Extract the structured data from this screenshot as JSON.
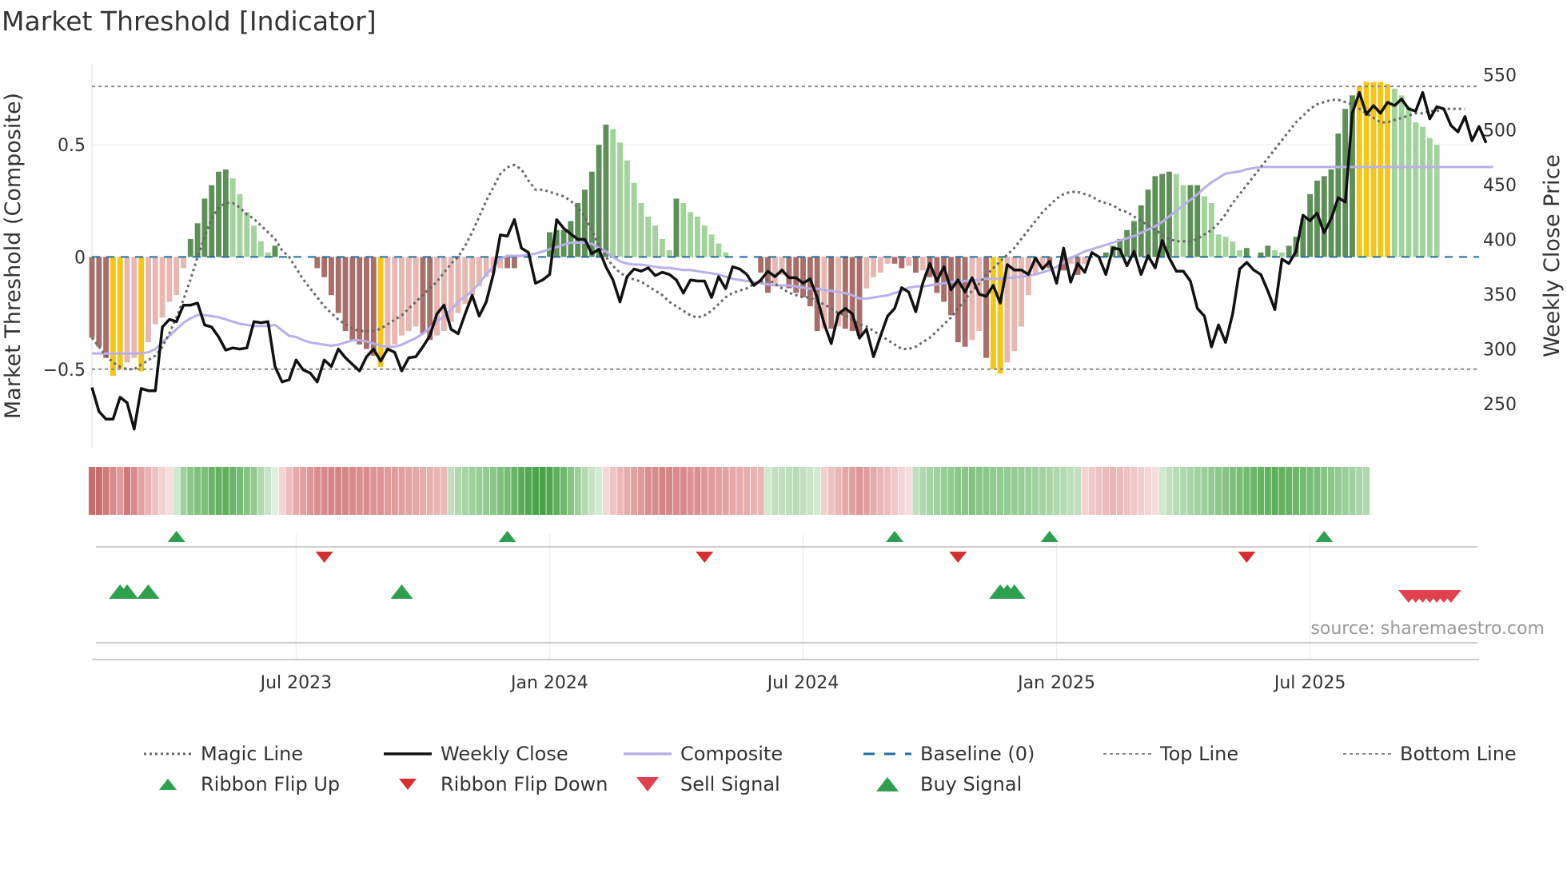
{
  "chart_data": {
    "type": "bar",
    "title": "Market Threshold [Indicator]",
    "source": "source: sharemaestro.com",
    "ylabel_left": "Market Threshold (Composite)",
    "ylabel_right": "Weekly Close Price",
    "ylim_left": [
      -0.85,
      0.86
    ],
    "ylim_right": [
      210,
      560
    ],
    "left_ticks": [
      {
        "value": 0.5,
        "label": "0.5"
      },
      {
        "value": 0,
        "label": "0"
      },
      {
        "value": -0.5,
        "label": "−0.5"
      }
    ],
    "right_ticks": [
      {
        "value": 550,
        "label": "550"
      },
      {
        "value": 500,
        "label": "500"
      },
      {
        "value": 450,
        "label": "450"
      },
      {
        "value": 400,
        "label": "400"
      },
      {
        "value": 350,
        "label": "350"
      },
      {
        "value": 300,
        "label": "300"
      },
      {
        "value": 250,
        "label": "250"
      }
    ],
    "x_ticks": [
      {
        "week": 29,
        "label": "Jul 2023"
      },
      {
        "week": 65,
        "label": "Jan 2024"
      },
      {
        "week": 101,
        "label": "Jul 2024"
      },
      {
        "week": 137,
        "label": "Jan 2025"
      },
      {
        "week": 173,
        "label": "Jul 2025"
      }
    ],
    "weeks": 198,
    "top_line": 0.76,
    "bottom_line": -0.5,
    "histogram": [
      -0.36,
      -0.4,
      -0.45,
      -0.53,
      -0.5,
      -0.47,
      -0.45,
      -0.51,
      -0.38,
      -0.3,
      -0.27,
      -0.2,
      -0.17,
      -0.05,
      0.08,
      0.15,
      0.26,
      0.32,
      0.38,
      0.39,
      0.35,
      0.28,
      0.2,
      0.14,
      0.07,
      0.02,
      0.05,
      0,
      0,
      0,
      0,
      0,
      -0.05,
      -0.09,
      -0.17,
      -0.25,
      -0.33,
      -0.37,
      -0.39,
      -0.41,
      -0.44,
      -0.49,
      -0.42,
      -0.39,
      -0.35,
      -0.33,
      -0.31,
      -0.34,
      -0.37,
      -0.35,
      -0.33,
      -0.29,
      -0.25,
      -0.21,
      -0.17,
      -0.13,
      -0.09,
      -0.07,
      -0.05,
      -0.05,
      -0.05,
      0,
      0,
      0,
      0,
      0.11,
      0.12,
      0.12,
      0.16,
      0.24,
      0.3,
      0.38,
      0.5,
      0.59,
      0.57,
      0.51,
      0.43,
      0.33,
      0.24,
      0.18,
      0.14,
      0.08,
      0.03,
      0.26,
      0.24,
      0.2,
      0.18,
      0.14,
      0.1,
      0.06,
      0.02,
      0,
      0,
      0,
      0,
      -0.07,
      -0.16,
      -0.12,
      -0.08,
      -0.14,
      -0.16,
      -0.18,
      -0.22,
      -0.33,
      -0.32,
      -0.32,
      -0.31,
      -0.32,
      -0.33,
      -0.35,
      -0.14,
      -0.09,
      -0.07,
      -0.03,
      -0.03,
      -0.05,
      -0.04,
      -0.07,
      -0.06,
      -0.09,
      -0.16,
      -0.2,
      -0.26,
      -0.38,
      -0.4,
      -0.37,
      -0.33,
      -0.45,
      -0.5,
      -0.52,
      -0.47,
      -0.42,
      -0.31,
      -0.17,
      -0.08,
      -0.05,
      -0.05,
      0,
      -0.06,
      -0.03,
      -0.08,
      -0.03,
      0,
      0,
      0.02,
      0.05,
      0.08,
      0.12,
      0.16,
      0.23,
      0.3,
      0.36,
      0.37,
      0.38,
      0.37,
      0.32,
      0.32,
      0.32,
      0.27,
      0.24,
      0.1,
      0.09,
      0.07,
      0.03,
      0.04,
      0,
      0.02,
      0.05,
      0.03,
      0.02,
      0.05,
      0.09,
      0.17,
      0.28,
      0.34,
      0.36,
      0.39,
      0.55,
      0.66,
      0.72,
      0.76,
      0.78,
      0.78,
      0.78,
      0.77,
      0.75,
      0.72,
      0.67,
      0.6,
      0.58,
      0.53,
      0.5
    ],
    "histogram_colors": {
      "dark_green": "#5e8f59",
      "light_green": "#a3d39c",
      "dark_red": "#a86e6a",
      "light_red": "#e8b7b1",
      "extreme": "#f5c518"
    },
    "ribbon_colors": [
      "#c96e6e",
      "#c96e6e",
      "#d07a7a",
      "#d98b8b",
      "#e09a9a",
      "#cf7a7a",
      "#d98b8b",
      "#e3a3a3",
      "#e9b4b4",
      "#eec2c2",
      "#f3d2d2",
      "#f7dede",
      "#cfe8ce",
      "#9fd19d",
      "#8bc789",
      "#82c280",
      "#7dbf7b",
      "#69b467",
      "#62b060",
      "#5eae5c",
      "#6ab568",
      "#78bd76",
      "#85c383",
      "#94ca92",
      "#b1d9af",
      "#c8e4c6",
      "#dff0de",
      "#f4d4d4",
      "#eebebe",
      "#e8a9a9",
      "#e3a0a0",
      "#de9595",
      "#da8e8e",
      "#d98b8b",
      "#d48585",
      "#d38383",
      "#d58686",
      "#d78a8a",
      "#da8f8f",
      "#d98c8c",
      "#dd9494",
      "#dc9393",
      "#df9a9a",
      "#e09c9c",
      "#e29f9f",
      "#e3a3a3",
      "#e4a6a6",
      "#e6abab",
      "#e8afaf",
      "#eab4b4",
      "#ebb7b7",
      "#c2e0c0",
      "#b0d8ae",
      "#a7d4a5",
      "#9fd09d",
      "#98cd96",
      "#94cb92",
      "#8cc78a",
      "#81c17f",
      "#78bd76",
      "#69b467",
      "#5bac59",
      "#52a850",
      "#49a447",
      "#48a346",
      "#4fa64d",
      "#5fae5d",
      "#70b86e",
      "#86c384",
      "#9dcf9b",
      "#b2d9b0",
      "#c8e4c6",
      "#d4ead3",
      "#f4d8d8",
      "#efc4c4",
      "#ebb6b6",
      "#e7abab",
      "#e2a0a0",
      "#df9999",
      "#da8f8f",
      "#d88b8b",
      "#d48484",
      "#d58686",
      "#d98b8b",
      "#d88a8a",
      "#dd9393",
      "#da8f8f",
      "#de9797",
      "#e09a9a",
      "#e29f9f",
      "#e3a3a3",
      "#e5a7a7",
      "#e6aaaa",
      "#e7adad",
      "#e9b1b1",
      "#eab4b4",
      "#cfe8ce",
      "#c2e0c0",
      "#c2e0c0",
      "#bcdfba",
      "#b7dcb5",
      "#c0e0be",
      "#c8e4c6",
      "#d2e9d1",
      "#f2d0d0",
      "#eec2c2",
      "#e9b4b4",
      "#e5a7a7",
      "#e1a0a0",
      "#dd9595",
      "#e0a0a0",
      "#e5aaaa",
      "#e9b4b4",
      "#edbdbd",
      "#f0c8c8",
      "#f4d4d4",
      "#f7dede",
      "#c2e0c0",
      "#b0d8ae",
      "#a7d4a5",
      "#9fd09d",
      "#98cd96",
      "#92ca90",
      "#8cc78a",
      "#88c586",
      "#84c382",
      "#88c586",
      "#8cc78a",
      "#90c98e",
      "#92ca90",
      "#94cb92",
      "#96cc94",
      "#98cd96",
      "#9bce99",
      "#9fd09d",
      "#a4d2a2",
      "#a9d4a7",
      "#aed7ac",
      "#b4dab2",
      "#bcdfba",
      "#c2e0c0",
      "#f3d2d2",
      "#f0c8c8",
      "#eec2c2",
      "#ebbaba",
      "#e9b4b4",
      "#ebbaba",
      "#eec2c2",
      "#f0c8c8",
      "#f2cece",
      "#f4d4d4",
      "#f7dede",
      "#cfe8ce",
      "#c2e0c0",
      "#b7dcb5",
      "#b0d8ae",
      "#a9d4a7",
      "#a2d1a0",
      "#9bce99",
      "#94cb92",
      "#8dc78b",
      "#86c384",
      "#7fbf7d",
      "#78bd76",
      "#72ba70",
      "#6cb66a",
      "#66b364",
      "#62b060",
      "#5eae5c",
      "#62b060",
      "#66b364",
      "#6cb66a",
      "#72ba70",
      "#78bd76",
      "#7fbf7d",
      "#86c384",
      "#8dc78b",
      "#94cb92",
      "#9bce99",
      "#a2d1a0",
      "#a9d4a7",
      "#b0d8ae"
    ],
    "weekly_close": [
      265,
      243,
      236,
      236,
      256,
      251,
      227,
      264,
      262,
      262,
      320,
      327,
      325,
      340,
      340,
      342,
      322,
      320,
      311,
      299,
      301,
      300,
      301,
      325,
      324,
      325,
      284,
      270,
      272,
      290,
      281,
      278,
      270,
      290,
      284,
      300,
      292,
      286,
      280,
      293,
      300,
      289,
      300,
      297,
      280,
      292,
      293,
      302,
      312,
      332,
      340,
      318,
      314,
      332,
      349,
      330,
      343,
      368,
      404,
      403,
      418,
      392,
      388,
      360,
      363,
      368,
      418,
      410,
      405,
      400,
      400,
      387,
      391,
      375,
      363,
      343,
      366,
      373,
      371,
      374,
      367,
      370,
      368,
      363,
      351,
      363,
      362,
      362,
      347,
      366,
      355,
      375,
      373,
      368,
      358,
      363,
      371,
      366,
      372,
      365,
      365,
      360,
      364,
      347,
      323,
      305,
      332,
      337,
      332,
      310,
      318,
      293,
      312,
      330,
      337,
      356,
      352,
      334,
      360,
      378,
      362,
      375,
      354,
      363,
      352,
      365,
      350,
      348,
      358,
      342,
      377,
      372,
      372,
      368,
      383,
      373,
      380,
      360,
      392,
      361,
      378,
      370,
      388,
      384,
      368,
      392,
      391,
      376,
      389,
      368,
      385,
      374,
      399,
      383,
      371,
      371,
      362,
      337,
      330,
      302,
      322,
      306,
      332,
      373,
      379,
      372,
      368,
      353,
      336,
      382,
      378,
      389,
      422,
      417,
      424,
      406,
      419,
      438,
      434,
      515,
      534,
      514,
      522,
      515,
      525,
      522,
      528,
      519,
      517,
      534,
      510,
      521,
      519,
      504,
      498,
      512,
      490,
      503,
      488
    ],
    "composite_right_axis": [
      296,
      296,
      296,
      296,
      296,
      296,
      296,
      296,
      297,
      300,
      306,
      312,
      318,
      324,
      328,
      331,
      331,
      330,
      329,
      327,
      325,
      323,
      322,
      321,
      321,
      321,
      322,
      317,
      312,
      311,
      308,
      306,
      305,
      304,
      303,
      304,
      306,
      308,
      308,
      307,
      305,
      303,
      302,
      302,
      304,
      307,
      310,
      314,
      319,
      325,
      330,
      336,
      343,
      348,
      353,
      360,
      368,
      375,
      382,
      385,
      385,
      385,
      386,
      387,
      389,
      391,
      393,
      395,
      397,
      397,
      397,
      396,
      392,
      389,
      384,
      380,
      378,
      377,
      377,
      376,
      375,
      374,
      374,
      373,
      372,
      372,
      371,
      370,
      369,
      368,
      366,
      364,
      363,
      362,
      361,
      360,
      359,
      358,
      358,
      358,
      357,
      356,
      355,
      355,
      354,
      353,
      352,
      351,
      349,
      346,
      346,
      347,
      348,
      349,
      351,
      353,
      356,
      357,
      357,
      358,
      359,
      360,
      361,
      362,
      362,
      363,
      363,
      364,
      364,
      364,
      365,
      365,
      366,
      367,
      368,
      370,
      372,
      375,
      379,
      383,
      386,
      389,
      391,
      393,
      395,
      397,
      399,
      401,
      403,
      406,
      409,
      412,
      416,
      421,
      426,
      431,
      436,
      441,
      447,
      452,
      456,
      460,
      461,
      462,
      464,
      465,
      466,
      466,
      466,
      466,
      466,
      466,
      466,
      466,
      466,
      466,
      466,
      466,
      466,
      466,
      466,
      466,
      466,
      466,
      466,
      466,
      466,
      466,
      466,
      466,
      466,
      466,
      466,
      466,
      466,
      466,
      466,
      466,
      466,
      466
    ],
    "magic_line": [
      -0.36,
      -0.4,
      -0.44,
      -0.47,
      -0.49,
      -0.5,
      -0.5,
      -0.48,
      -0.46,
      -0.44,
      -0.4,
      -0.34,
      -0.27,
      -0.19,
      -0.1,
      0,
      0.09,
      0.17,
      0.22,
      0.24,
      0.24,
      0.22,
      0.19,
      0.17,
      0.14,
      0.11,
      0.08,
      0.03,
      0,
      -0.05,
      -0.1,
      -0.14,
      -0.18,
      -0.22,
      -0.25,
      -0.28,
      -0.3,
      -0.32,
      -0.33,
      -0.33,
      -0.33,
      -0.32,
      -0.3,
      -0.28,
      -0.26,
      -0.23,
      -0.2,
      -0.17,
      -0.14,
      -0.11,
      -0.07,
      -0.03,
      0,
      0.05,
      0.11,
      0.18,
      0.25,
      0.31,
      0.37,
      0.4,
      0.41,
      0.39,
      0.34,
      0.3,
      0.3,
      0.29,
      0.28,
      0.27,
      0.25,
      0.22,
      0.18,
      0.12,
      0.05,
      0,
      -0.04,
      -0.07,
      -0.09,
      -0.1,
      -0.11,
      -0.13,
      -0.15,
      -0.17,
      -0.2,
      -0.22,
      -0.24,
      -0.26,
      -0.27,
      -0.26,
      -0.24,
      -0.21,
      -0.18,
      -0.16,
      -0.15,
      -0.14,
      -0.12,
      -0.11,
      -0.1,
      -0.12,
      -0.14,
      -0.16,
      -0.17,
      -0.18,
      -0.18,
      -0.2,
      -0.21,
      -0.23,
      -0.25,
      -0.26,
      -0.28,
      -0.3,
      -0.31,
      -0.33,
      -0.35,
      -0.37,
      -0.39,
      -0.41,
      -0.41,
      -0.4,
      -0.38,
      -0.36,
      -0.33,
      -0.3,
      -0.27,
      -0.23,
      -0.19,
      -0.15,
      -0.12,
      -0.08,
      -0.05,
      -0.02,
      0.01,
      0.04,
      0.08,
      0.12,
      0.16,
      0.2,
      0.23,
      0.26,
      0.28,
      0.29,
      0.29,
      0.28,
      0.27,
      0.25,
      0.24,
      0.23,
      0.21,
      0.2,
      0.18,
      0.16,
      0.14,
      0.12,
      0.1,
      0.08,
      0.07,
      0.07,
      0.07,
      0.08,
      0.1,
      0.12,
      0.15,
      0.19,
      0.24,
      0.28,
      0.32,
      0.36,
      0.4,
      0.44,
      0.48,
      0.52,
      0.56,
      0.6,
      0.63,
      0.66,
      0.68,
      0.69,
      0.7,
      0.7,
      0.69,
      0.68,
      0.66,
      0.64,
      0.62,
      0.6,
      0.6,
      0.61,
      0.62,
      0.63,
      0.64,
      0.64,
      0.65,
      0.65,
      0.66,
      0.66,
      0.66,
      0.66
    ],
    "ribbon_flip_up_weeks": [
      12,
      59,
      114,
      136,
      175
    ],
    "ribbon_flip_down_weeks": [
      33,
      87,
      123,
      164
    ],
    "buy_signal_weeks": [
      4,
      5,
      8,
      44,
      129,
      130,
      131
    ],
    "sell_signal_weeks": [
      187,
      188,
      189,
      190,
      191,
      192,
      193
    ],
    "legend": [
      {
        "label": "Magic Line",
        "style": "dotted-line",
        "color": "#666666"
      },
      {
        "label": "Weekly Close",
        "style": "solid-line",
        "color": "#111111"
      },
      {
        "label": "Composite",
        "style": "solid-line",
        "color": "#b8b0e8"
      },
      {
        "label": "Baseline (0)",
        "style": "dashed-line",
        "color": "#1f6f9f"
      },
      {
        "label": "Top Line",
        "style": "thin-dashed",
        "color": "#888888"
      },
      {
        "label": "Bottom Line",
        "style": "thin-dashed",
        "color": "#888888"
      },
      {
        "label": "Ribbon Flip Up",
        "style": "triangle-up",
        "color": "#2e9e4f"
      },
      {
        "label": "Ribbon Flip Down",
        "style": "triangle-down",
        "color": "#d62f2f"
      },
      {
        "label": "Sell Signal",
        "style": "triangle-down",
        "color": "#e0414f"
      },
      {
        "label": "Buy Signal",
        "style": "triangle-up",
        "color": "#2e9e4f"
      }
    ]
  }
}
